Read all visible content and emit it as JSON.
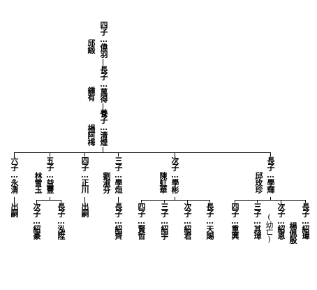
{
  "upper": {
    "c1": "四子…偉羽",
    "c1_spouse": "邱緞",
    "c2": "長子…萬得",
    "c2_spouse": "鍾有",
    "c3": "養子…清煌",
    "c3_spouse": "楊阿梅"
  },
  "children": [
    {
      "main": "六子…永清",
      "heir": "出嗣"
    },
    {
      "main": "五子…益豐",
      "spouse": "林雪玉",
      "kids": [
        "次子…紹豪",
        "長子…泓陞"
      ]
    },
    {
      "main": "四子…正川",
      "heir": "出嗣"
    },
    {
      "main": "三子…學烜",
      "spouse": "劉淑芬",
      "kids": [
        "長子…紹齊"
      ]
    },
    {
      "main": "次子…學彬",
      "spouse": "陳虹華",
      "kids": [
        "四子…賢哲",
        "三子…紹宇",
        "次子…紹君",
        "長子…天賜"
      ]
    },
    {
      "main": "長子…學輝",
      "spouse": "邱玫珍",
      "kids": [
        "四子…重興",
        "三子…其璋",
        "次子…紹恩",
        "長子…紹瑋"
      ],
      "note": "(幼亡)",
      "kid_spouse": "楊佩殷"
    }
  ]
}
